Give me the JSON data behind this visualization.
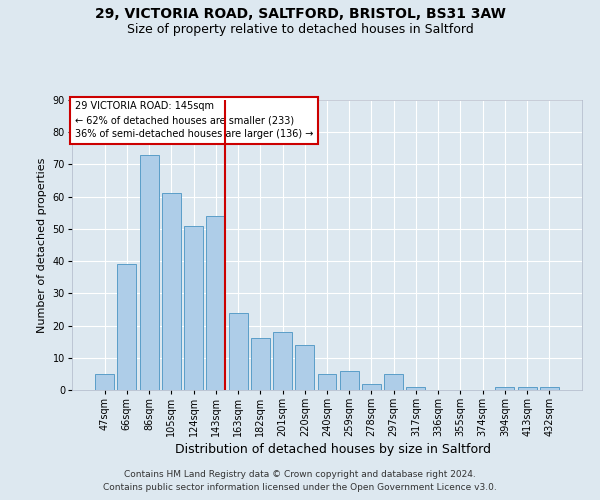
{
  "title1": "29, VICTORIA ROAD, SALTFORD, BRISTOL, BS31 3AW",
  "title2": "Size of property relative to detached houses in Saltford",
  "xlabel": "Distribution of detached houses by size in Saltford",
  "ylabel": "Number of detached properties",
  "categories": [
    "47sqm",
    "66sqm",
    "86sqm",
    "105sqm",
    "124sqm",
    "143sqm",
    "163sqm",
    "182sqm",
    "201sqm",
    "220sqm",
    "240sqm",
    "259sqm",
    "278sqm",
    "297sqm",
    "317sqm",
    "336sqm",
    "355sqm",
    "374sqm",
    "394sqm",
    "413sqm",
    "432sqm"
  ],
  "values": [
    5,
    39,
    73,
    61,
    51,
    54,
    24,
    16,
    18,
    14,
    5,
    6,
    2,
    5,
    1,
    0,
    0,
    0,
    1,
    1,
    1
  ],
  "bar_color": "#aecde8",
  "bar_edge_color": "#5a9ec8",
  "vline_color": "#cc0000",
  "vline_index": 5,
  "annotation_line1": "29 VICTORIA ROAD: 145sqm",
  "annotation_line2": "← 62% of detached houses are smaller (233)",
  "annotation_line3": "36% of semi-detached houses are larger (136) →",
  "annotation_box_facecolor": "#ffffff",
  "annotation_box_edgecolor": "#cc0000",
  "ylim": [
    0,
    90
  ],
  "yticks": [
    0,
    10,
    20,
    30,
    40,
    50,
    60,
    70,
    80,
    90
  ],
  "footer1": "Contains HM Land Registry data © Crown copyright and database right 2024.",
  "footer2": "Contains public sector information licensed under the Open Government Licence v3.0.",
  "background_color": "#dde8f0",
  "grid_color": "#ffffff",
  "title1_fontsize": 10,
  "title2_fontsize": 9,
  "xlabel_fontsize": 9,
  "ylabel_fontsize": 8,
  "tick_fontsize": 7,
  "annotation_fontsize": 7,
  "footer_fontsize": 6.5
}
